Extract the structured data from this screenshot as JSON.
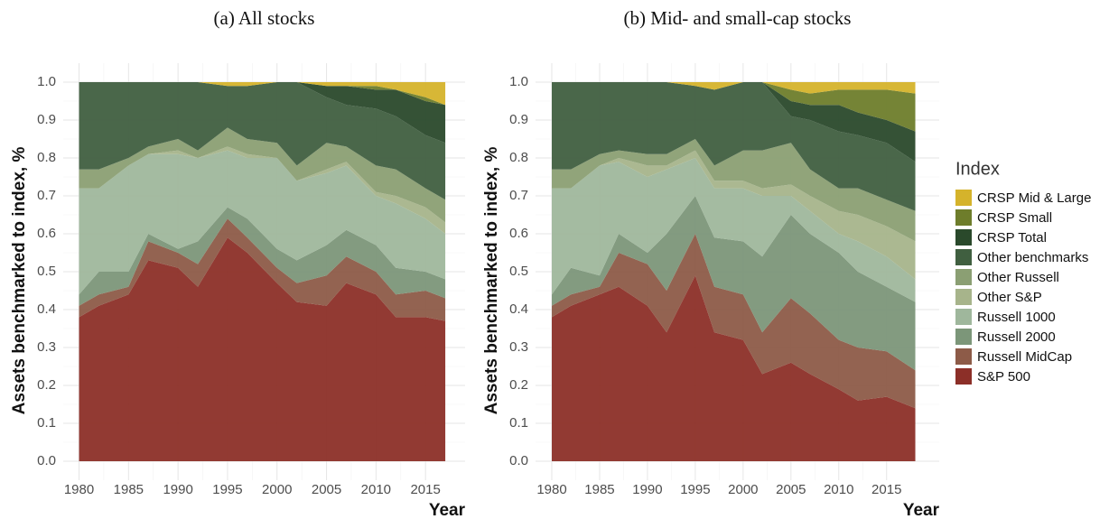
{
  "chart_data": [
    {
      "type": "stacked_area",
      "title": "(a) All stocks",
      "x_label": "Year",
      "y_label": "Assets benchmarked to index, %",
      "legend_title": "Index",
      "legend": "right",
      "grid": true,
      "x": [
        1980,
        1982,
        1985,
        1987,
        1990,
        1992,
        1995,
        1997,
        2000,
        2002,
        2005,
        2007,
        2010,
        2012,
        2015,
        2017
      ],
      "xlim": [
        1978.4,
        2019
      ],
      "xticks": [
        1980,
        1985,
        1990,
        1995,
        2000,
        2005,
        2010,
        2015
      ],
      "ylim": [
        -0.05,
        1.05
      ],
      "yticks": [
        {
          "value": 0,
          "label": "0.0"
        },
        0.1,
        0.2,
        0.3,
        0.4,
        0.5,
        0.6,
        0.7,
        0.8,
        0.9,
        {
          "value": 1,
          "label": "1.0"
        }
      ],
      "series": [
        {
          "name": "S&P 500",
          "color": "#8c2f28",
          "values": [
            0.38,
            0.41,
            0.44,
            0.53,
            0.51,
            0.46,
            0.59,
            0.55,
            0.47,
            0.42,
            0.41,
            0.47,
            0.44,
            0.38,
            0.38,
            0.37
          ]
        },
        {
          "name": "Russell MidCap",
          "color": "#8d5b48",
          "values": [
            0.03,
            0.03,
            0.02,
            0.05,
            0.04,
            0.06,
            0.05,
            0.04,
            0.04,
            0.05,
            0.08,
            0.07,
            0.06,
            0.06,
            0.07,
            0.06
          ]
        },
        {
          "name": "Russell 2000",
          "color": "#7c9679",
          "values": [
            0.03,
            0.06,
            0.04,
            0.02,
            0.01,
            0.06,
            0.03,
            0.05,
            0.05,
            0.06,
            0.08,
            0.07,
            0.07,
            0.07,
            0.05,
            0.05
          ]
        },
        {
          "name": "Russell 1000",
          "color": "#9fb79c",
          "values": [
            0.28,
            0.22,
            0.28,
            0.21,
            0.25,
            0.22,
            0.15,
            0.16,
            0.24,
            0.21,
            0.19,
            0.17,
            0.13,
            0.17,
            0.14,
            0.12
          ]
        },
        {
          "name": "Other S&P",
          "color": "#a7b48b",
          "values": [
            0,
            0,
            0,
            0,
            0.01,
            0,
            0.01,
            0.01,
            0,
            0,
            0.01,
            0.01,
            0.01,
            0.02,
            0.03,
            0.03
          ]
        },
        {
          "name": "Other Russell",
          "color": "#8b9f73",
          "values": [
            0.05,
            0.05,
            0.02,
            0.02,
            0.03,
            0.02,
            0.05,
            0.04,
            0.04,
            0.04,
            0.07,
            0.04,
            0.07,
            0.07,
            0.05,
            0.06
          ]
        },
        {
          "name": "Other benchmarks",
          "color": "#405f40",
          "values": [
            0.23,
            0.23,
            0.2,
            0.17,
            0.15,
            0.18,
            0.11,
            0.14,
            0.16,
            0.22,
            0.12,
            0.11,
            0.15,
            0.14,
            0.14,
            0.15
          ]
        },
        {
          "name": "CRSP Total",
          "color": "#2a492b",
          "values": [
            0,
            0,
            0,
            0,
            0,
            0,
            0,
            0,
            0,
            0,
            0.03,
            0.05,
            0.05,
            0.07,
            0.09,
            0.1
          ]
        },
        {
          "name": "CRSP Small",
          "color": "#6e7d2b",
          "values": [
            0,
            0,
            0,
            0,
            0,
            0,
            0,
            0,
            0,
            0,
            0,
            0,
            0.01,
            0,
            0.01,
            0
          ]
        },
        {
          "name": "CRSP Mid & Large",
          "color": "#d5b32b",
          "values": [
            0,
            0,
            0,
            0,
            0,
            0,
            0.01,
            0.01,
            0,
            0,
            0.01,
            0.01,
            0.01,
            0.02,
            0.04,
            0.06
          ]
        }
      ]
    },
    {
      "type": "stacked_area",
      "title": "(b) Mid- and small-cap stocks",
      "x_label": "Year",
      "y_label": "Assets benchmarked to index, %",
      "grid": true,
      "x": [
        1980,
        1982,
        1985,
        1987,
        1990,
        1992,
        1995,
        1997,
        2000,
        2002,
        2005,
        2007,
        2010,
        2012,
        2015,
        2018
      ],
      "xlim": [
        1978.3,
        2020.5
      ],
      "xticks": [
        1980,
        1985,
        1990,
        1995,
        2000,
        2005,
        2010,
        2015
      ],
      "ylim": [
        -0.05,
        1.05
      ],
      "yticks": [
        {
          "value": 0,
          "label": "0.0"
        },
        0.1,
        0.2,
        0.3,
        0.4,
        0.5,
        0.6,
        0.7,
        0.8,
        0.9,
        {
          "value": 1,
          "label": "1.0"
        }
      ],
      "series": [
        {
          "name": "S&P 500",
          "color": "#8c2f28",
          "values": [
            0.38,
            0.41,
            0.44,
            0.46,
            0.41,
            0.34,
            0.49,
            0.34,
            0.32,
            0.23,
            0.26,
            0.23,
            0.19,
            0.16,
            0.17,
            0.14
          ]
        },
        {
          "name": "Russell MidCap",
          "color": "#8d5b48",
          "values": [
            0.03,
            0.03,
            0.02,
            0.09,
            0.11,
            0.11,
            0.11,
            0.12,
            0.12,
            0.11,
            0.17,
            0.16,
            0.13,
            0.14,
            0.12,
            0.1
          ]
        },
        {
          "name": "Russell 2000",
          "color": "#7c9679",
          "values": [
            0.03,
            0.07,
            0.03,
            0.05,
            0.03,
            0.15,
            0.1,
            0.13,
            0.14,
            0.2,
            0.22,
            0.21,
            0.23,
            0.2,
            0.17,
            0.18
          ]
        },
        {
          "name": "Russell 1000",
          "color": "#9fb79c",
          "values": [
            0.28,
            0.21,
            0.29,
            0.19,
            0.2,
            0.17,
            0.1,
            0.13,
            0.14,
            0.16,
            0.05,
            0.06,
            0.05,
            0.08,
            0.08,
            0.06
          ]
        },
        {
          "name": "Other S&P",
          "color": "#a7b48b",
          "values": [
            0,
            0,
            0,
            0.01,
            0.03,
            0.01,
            0.02,
            0.02,
            0.02,
            0.02,
            0.03,
            0.04,
            0.06,
            0.07,
            0.08,
            0.1
          ]
        },
        {
          "name": "Other Russell",
          "color": "#8b9f73",
          "values": [
            0.05,
            0.05,
            0.03,
            0.02,
            0.03,
            0.03,
            0.03,
            0.04,
            0.08,
            0.1,
            0.11,
            0.07,
            0.06,
            0.07,
            0.07,
            0.08
          ]
        },
        {
          "name": "Other benchmarks",
          "color": "#405f40",
          "values": [
            0.23,
            0.23,
            0.19,
            0.18,
            0.19,
            0.19,
            0.14,
            0.2,
            0.18,
            0.18,
            0.07,
            0.13,
            0.15,
            0.14,
            0.15,
            0.13
          ]
        },
        {
          "name": "CRSP Total",
          "color": "#2a492b",
          "values": [
            0,
            0,
            0,
            0,
            0,
            0,
            0,
            0,
            0,
            0,
            0.04,
            0.04,
            0.07,
            0.06,
            0.06,
            0.08
          ]
        },
        {
          "name": "CRSP Small",
          "color": "#6e7d2b",
          "values": [
            0,
            0,
            0,
            0,
            0,
            0,
            0,
            0,
            0,
            0,
            0.03,
            0.03,
            0.04,
            0.06,
            0.08,
            0.1
          ]
        },
        {
          "name": "CRSP Mid & Large",
          "color": "#d5b32b",
          "values": [
            0,
            0,
            0,
            0,
            0,
            0,
            0.01,
            0.02,
            0,
            0,
            0.02,
            0.03,
            0.02,
            0.02,
            0.02,
            0.03
          ]
        }
      ]
    }
  ]
}
